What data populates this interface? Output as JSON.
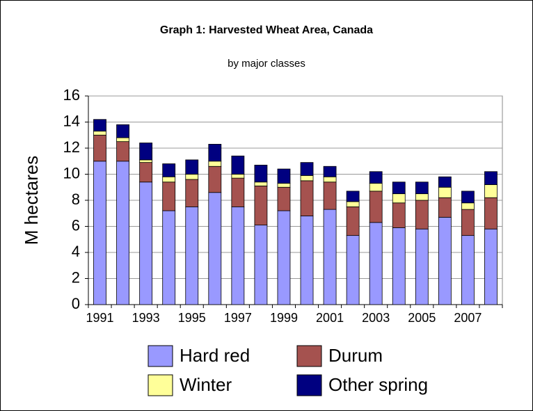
{
  "chart_data": {
    "type": "stacked_bar",
    "title": "Graph 1: Harvested Wheat Area, Canada",
    "subtitle": "by major classes",
    "y_label": "M hectares",
    "categories": [
      "1991",
      null,
      "1993",
      null,
      "1995",
      null,
      "1997",
      null,
      "1999",
      null,
      "2001",
      null,
      "2003",
      null,
      "2005",
      null,
      "2007",
      null
    ],
    "series": [
      {
        "name": "Hard red",
        "color": "#9999ff",
        "values": [
          11.0,
          11.0,
          9.4,
          7.2,
          7.5,
          8.6,
          7.5,
          6.1,
          7.2,
          6.8,
          7.3,
          5.3,
          6.3,
          5.9,
          5.8,
          6.7,
          5.3,
          5.8
        ]
      },
      {
        "name": "Durum",
        "color": "#a5524f",
        "values": [
          2.0,
          1.5,
          1.5,
          2.2,
          2.1,
          2.0,
          2.2,
          3.0,
          1.8,
          2.7,
          2.1,
          2.2,
          2.4,
          1.9,
          2.2,
          1.5,
          2.0,
          2.4
        ]
      },
      {
        "name": "Winter",
        "color": "#ffff99",
        "values": [
          0.3,
          0.3,
          0.2,
          0.4,
          0.4,
          0.4,
          0.3,
          0.3,
          0.3,
          0.4,
          0.4,
          0.4,
          0.6,
          0.7,
          0.5,
          0.8,
          0.5,
          1.0
        ]
      },
      {
        "name": "Other spring",
        "color": "#000080",
        "values": [
          0.9,
          1.0,
          1.3,
          1.0,
          1.1,
          1.3,
          1.4,
          1.3,
          1.1,
          1.0,
          0.8,
          0.8,
          0.9,
          0.9,
          0.9,
          0.8,
          0.9,
          1.0
        ]
      }
    ],
    "ylim": [
      0,
      16
    ],
    "yticks": [
      0,
      2,
      4,
      6,
      8,
      10,
      12,
      14,
      16
    ],
    "grid": true,
    "legend": "bottom"
  }
}
